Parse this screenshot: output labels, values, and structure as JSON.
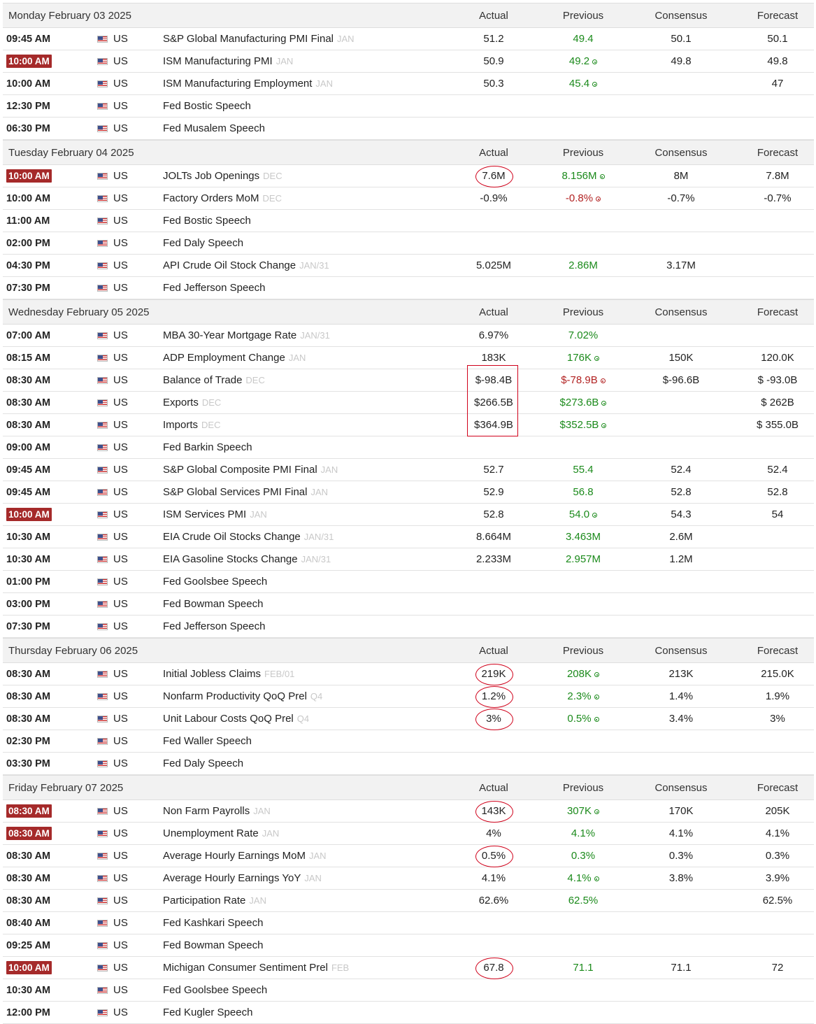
{
  "columns": {
    "actual": "Actual",
    "previous": "Previous",
    "consensus": "Consensus",
    "forecast": "Forecast"
  },
  "days": [
    {
      "date": "Monday February 03 2025",
      "events": [
        {
          "time": "09:45 AM",
          "high": false,
          "country": "US",
          "event": "S&P Global Manufacturing PMI Final",
          "ref": "JAN",
          "actual": "51.2",
          "previous": "49.4",
          "prev_color": "green",
          "revised": false,
          "consensus": "50.1",
          "forecast": "50.1"
        },
        {
          "time": "10:00 AM",
          "high": true,
          "country": "US",
          "event": "ISM Manufacturing PMI",
          "ref": "JAN",
          "actual": "50.9",
          "previous": "49.2",
          "prev_color": "green",
          "revised": true,
          "consensus": "49.8",
          "forecast": "49.8"
        },
        {
          "time": "10:00 AM",
          "high": false,
          "country": "US",
          "event": "ISM Manufacturing Employment",
          "ref": "JAN",
          "actual": "50.3",
          "previous": "45.4",
          "prev_color": "green",
          "revised": true,
          "consensus": "",
          "forecast": "47"
        },
        {
          "time": "12:30 PM",
          "high": false,
          "country": "US",
          "event": "Fed Bostic Speech",
          "ref": "",
          "actual": "",
          "previous": "",
          "prev_color": "",
          "revised": false,
          "consensus": "",
          "forecast": ""
        },
        {
          "time": "06:30 PM",
          "high": false,
          "country": "US",
          "event": "Fed Musalem Speech",
          "ref": "",
          "actual": "",
          "previous": "",
          "prev_color": "",
          "revised": false,
          "consensus": "",
          "forecast": ""
        }
      ]
    },
    {
      "date": "Tuesday February 04 2025",
      "events": [
        {
          "time": "10:00 AM",
          "high": true,
          "country": "US",
          "event": "JOLTs Job Openings",
          "ref": "DEC",
          "actual": "7.6M",
          "previous": "8.156M",
          "prev_color": "green",
          "revised": true,
          "consensus": "8M",
          "forecast": "7.8M"
        },
        {
          "time": "10:00 AM",
          "high": false,
          "country": "US",
          "event": "Factory Orders MoM",
          "ref": "DEC",
          "actual": "-0.9%",
          "previous": "-0.8%",
          "prev_color": "red",
          "revised": true,
          "consensus": "-0.7%",
          "forecast": "-0.7%"
        },
        {
          "time": "11:00 AM",
          "high": false,
          "country": "US",
          "event": "Fed Bostic Speech",
          "ref": "",
          "actual": "",
          "previous": "",
          "prev_color": "",
          "revised": false,
          "consensus": "",
          "forecast": ""
        },
        {
          "time": "02:00 PM",
          "high": false,
          "country": "US",
          "event": "Fed Daly Speech",
          "ref": "",
          "actual": "",
          "previous": "",
          "prev_color": "",
          "revised": false,
          "consensus": "",
          "forecast": ""
        },
        {
          "time": "04:30 PM",
          "high": false,
          "country": "US",
          "event": "API Crude Oil Stock Change",
          "ref": "JAN/31",
          "actual": "5.025M",
          "previous": "2.86M",
          "prev_color": "green",
          "revised": false,
          "consensus": "3.17M",
          "forecast": ""
        },
        {
          "time": "07:30 PM",
          "high": false,
          "country": "US",
          "event": "Fed Jefferson Speech",
          "ref": "",
          "actual": "",
          "previous": "",
          "prev_color": "",
          "revised": false,
          "consensus": "",
          "forecast": ""
        }
      ]
    },
    {
      "date": "Wednesday February 05 2025",
      "events": [
        {
          "time": "07:00 AM",
          "high": false,
          "country": "US",
          "event": "MBA 30-Year Mortgage Rate",
          "ref": "JAN/31",
          "actual": "6.97%",
          "previous": "7.02%",
          "prev_color": "green",
          "revised": false,
          "consensus": "",
          "forecast": ""
        },
        {
          "time": "08:15 AM",
          "high": false,
          "country": "US",
          "event": "ADP Employment Change",
          "ref": "JAN",
          "actual": "183K",
          "previous": "176K",
          "prev_color": "green",
          "revised": true,
          "consensus": "150K",
          "forecast": "120.0K"
        },
        {
          "time": "08:30 AM",
          "high": false,
          "country": "US",
          "event": "Balance of Trade",
          "ref": "DEC",
          "actual": "$-98.4B",
          "previous": "$-78.9B",
          "prev_color": "red",
          "revised": true,
          "consensus": "$-96.6B",
          "forecast": "$ -93.0B"
        },
        {
          "time": "08:30 AM",
          "high": false,
          "country": "US",
          "event": "Exports",
          "ref": "DEC",
          "actual": "$266.5B",
          "previous": "$273.6B",
          "prev_color": "green",
          "revised": true,
          "consensus": "",
          "forecast": "$ 262B"
        },
        {
          "time": "08:30 AM",
          "high": false,
          "country": "US",
          "event": "Imports",
          "ref": "DEC",
          "actual": "$364.9B",
          "previous": "$352.5B",
          "prev_color": "green",
          "revised": true,
          "consensus": "",
          "forecast": "$ 355.0B"
        },
        {
          "time": "09:00 AM",
          "high": false,
          "country": "US",
          "event": "Fed Barkin Speech",
          "ref": "",
          "actual": "",
          "previous": "",
          "prev_color": "",
          "revised": false,
          "consensus": "",
          "forecast": ""
        },
        {
          "time": "09:45 AM",
          "high": false,
          "country": "US",
          "event": "S&P Global Composite PMI Final",
          "ref": "JAN",
          "actual": "52.7",
          "previous": "55.4",
          "prev_color": "green",
          "revised": false,
          "consensus": "52.4",
          "forecast": "52.4"
        },
        {
          "time": "09:45 AM",
          "high": false,
          "country": "US",
          "event": "S&P Global Services PMI Final",
          "ref": "JAN",
          "actual": "52.9",
          "previous": "56.8",
          "prev_color": "green",
          "revised": false,
          "consensus": "52.8",
          "forecast": "52.8"
        },
        {
          "time": "10:00 AM",
          "high": true,
          "country": "US",
          "event": "ISM Services PMI",
          "ref": "JAN",
          "actual": "52.8",
          "previous": "54.0",
          "prev_color": "green",
          "revised": true,
          "consensus": "54.3",
          "forecast": "54"
        },
        {
          "time": "10:30 AM",
          "high": false,
          "country": "US",
          "event": "EIA Crude Oil Stocks Change",
          "ref": "JAN/31",
          "actual": "8.664M",
          "previous": "3.463M",
          "prev_color": "green",
          "revised": false,
          "consensus": "2.6M",
          "forecast": ""
        },
        {
          "time": "10:30 AM",
          "high": false,
          "country": "US",
          "event": "EIA Gasoline Stocks Change",
          "ref": "JAN/31",
          "actual": "2.233M",
          "previous": "2.957M",
          "prev_color": "green",
          "revised": false,
          "consensus": "1.2M",
          "forecast": ""
        },
        {
          "time": "01:00 PM",
          "high": false,
          "country": "US",
          "event": "Fed Goolsbee Speech",
          "ref": "",
          "actual": "",
          "previous": "",
          "prev_color": "",
          "revised": false,
          "consensus": "",
          "forecast": ""
        },
        {
          "time": "03:00 PM",
          "high": false,
          "country": "US",
          "event": "Fed Bowman Speech",
          "ref": "",
          "actual": "",
          "previous": "",
          "prev_color": "",
          "revised": false,
          "consensus": "",
          "forecast": ""
        },
        {
          "time": "07:30 PM",
          "high": false,
          "country": "US",
          "event": "Fed Jefferson Speech",
          "ref": "",
          "actual": "",
          "previous": "",
          "prev_color": "",
          "revised": false,
          "consensus": "",
          "forecast": ""
        }
      ]
    },
    {
      "date": "Thursday February 06 2025",
      "events": [
        {
          "time": "08:30 AM",
          "high": false,
          "country": "US",
          "event": "Initial Jobless Claims",
          "ref": "FEB/01",
          "actual": "219K",
          "previous": "208K",
          "prev_color": "green",
          "revised": true,
          "consensus": "213K",
          "forecast": "215.0K"
        },
        {
          "time": "08:30 AM",
          "high": false,
          "country": "US",
          "event": "Nonfarm Productivity QoQ Prel",
          "ref": "Q4",
          "actual": "1.2%",
          "previous": "2.3%",
          "prev_color": "green",
          "revised": true,
          "consensus": "1.4%",
          "forecast": "1.9%"
        },
        {
          "time": "08:30 AM",
          "high": false,
          "country": "US",
          "event": "Unit Labour Costs QoQ Prel",
          "ref": "Q4",
          "actual": "3%",
          "previous": "0.5%",
          "prev_color": "green",
          "revised": true,
          "consensus": "3.4%",
          "forecast": "3%"
        },
        {
          "time": "02:30 PM",
          "high": false,
          "country": "US",
          "event": "Fed Waller Speech",
          "ref": "",
          "actual": "",
          "previous": "",
          "prev_color": "",
          "revised": false,
          "consensus": "",
          "forecast": ""
        },
        {
          "time": "03:30 PM",
          "high": false,
          "country": "US",
          "event": "Fed Daly Speech",
          "ref": "",
          "actual": "",
          "previous": "",
          "prev_color": "",
          "revised": false,
          "consensus": "",
          "forecast": ""
        }
      ]
    },
    {
      "date": "Friday February 07 2025",
      "events": [
        {
          "time": "08:30 AM",
          "high": true,
          "country": "US",
          "event": "Non Farm Payrolls",
          "ref": "JAN",
          "actual": "143K",
          "previous": "307K",
          "prev_color": "green",
          "revised": true,
          "consensus": "170K",
          "forecast": "205K"
        },
        {
          "time": "08:30 AM",
          "high": true,
          "country": "US",
          "event": "Unemployment Rate",
          "ref": "JAN",
          "actual": "4%",
          "previous": "4.1%",
          "prev_color": "green",
          "revised": false,
          "consensus": "4.1%",
          "forecast": "4.1%"
        },
        {
          "time": "08:30 AM",
          "high": false,
          "country": "US",
          "event": "Average Hourly Earnings MoM",
          "ref": "JAN",
          "actual": "0.5%",
          "previous": "0.3%",
          "prev_color": "green",
          "revised": false,
          "consensus": "0.3%",
          "forecast": "0.3%"
        },
        {
          "time": "08:30 AM",
          "high": false,
          "country": "US",
          "event": "Average Hourly Earnings YoY",
          "ref": "JAN",
          "actual": "4.1%",
          "previous": "4.1%",
          "prev_color": "green",
          "revised": true,
          "consensus": "3.8%",
          "forecast": "3.9%"
        },
        {
          "time": "08:30 AM",
          "high": false,
          "country": "US",
          "event": "Participation Rate",
          "ref": "JAN",
          "actual": "62.6%",
          "previous": "62.5%",
          "prev_color": "green",
          "revised": false,
          "consensus": "",
          "forecast": "62.5%"
        },
        {
          "time": "08:40 AM",
          "high": false,
          "country": "US",
          "event": "Fed Kashkari Speech",
          "ref": "",
          "actual": "",
          "previous": "",
          "prev_color": "",
          "revised": false,
          "consensus": "",
          "forecast": ""
        },
        {
          "time": "09:25 AM",
          "high": false,
          "country": "US",
          "event": "Fed Bowman Speech",
          "ref": "",
          "actual": "",
          "previous": "",
          "prev_color": "",
          "revised": false,
          "consensus": "",
          "forecast": ""
        },
        {
          "time": "10:00 AM",
          "high": true,
          "country": "US",
          "event": "Michigan Consumer Sentiment Prel",
          "ref": "FEB",
          "actual": "67.8",
          "previous": "71.1",
          "prev_color": "green",
          "revised": false,
          "consensus": "71.1",
          "forecast": "72"
        },
        {
          "time": "10:30 AM",
          "high": false,
          "country": "US",
          "event": "Fed Goolsbee Speech",
          "ref": "",
          "actual": "",
          "previous": "",
          "prev_color": "",
          "revised": false,
          "consensus": "",
          "forecast": ""
        },
        {
          "time": "12:00 PM",
          "high": false,
          "country": "US",
          "event": "Fed Kugler Speech",
          "ref": "",
          "actual": "",
          "previous": "",
          "prev_color": "",
          "revised": false,
          "consensus": "",
          "forecast": ""
        }
      ]
    }
  ],
  "annotations": {
    "circled_actuals": [
      [
        1,
        0
      ],
      [
        3,
        0
      ],
      [
        3,
        1
      ],
      [
        3,
        2
      ],
      [
        4,
        0
      ],
      [
        4,
        2
      ],
      [
        4,
        7
      ]
    ],
    "boxed_actuals": [
      [
        2,
        2,
        4
      ]
    ]
  },
  "colors": {
    "high_impact": "#a52a2a",
    "up": "#1b8a1b",
    "down": "#b22222",
    "annotation": "#d0021b"
  }
}
